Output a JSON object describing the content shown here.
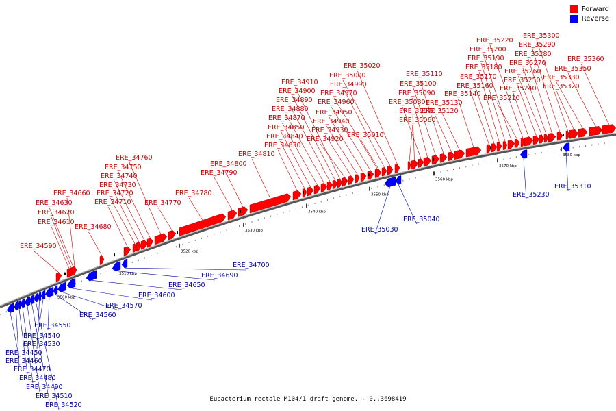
{
  "legend": {
    "forward_label": "Forward",
    "reverse_label": "Reverse",
    "forward_color": "#ff0000",
    "reverse_color": "#0000ff"
  },
  "caption": "Eubacterium rectale M104/1 draft genome. - 0..3698419",
  "tick_labels": [
    "3500 kbp",
    "3510 kbp",
    "3520 kbp",
    "3530 kbp",
    "3540 kbp",
    "3550 kbp",
    "3560 kbp",
    "3570 kbp",
    "3580 kbp"
  ],
  "forward_genes": [
    "ERE_34590",
    "ERE_34610",
    "ERE_34620",
    "ERE_34630",
    "ERE_34660",
    "ERE_34680",
    "ERE_34710",
    "ERE_34720",
    "ERE_34730",
    "ERE_34740",
    "ERE_34750",
    "ERE_34760",
    "ERE_34770",
    "ERE_34780",
    "ERE_34790",
    "ERE_34800",
    "ERE_34810",
    "ERE_34830",
    "ERE_34840",
    "ERE_34850",
    "ERE_34870",
    "ERE_34880",
    "ERE_34890",
    "ERE_34900",
    "ERE_34910",
    "ERE_34920",
    "ERE_34930",
    "ERE_34940",
    "ERE_34950",
    "ERE_34960",
    "ERE_34970",
    "ERE_34990",
    "ERE_35000",
    "ERE_35010",
    "ERE_35020",
    "ERE_35060",
    "ERE_35070",
    "ERE_35080",
    "ERE_35090",
    "ERE_35100",
    "ERE_35110",
    "ERE_35120",
    "ERE_35130",
    "ERE_35140",
    "ERE_35160",
    "ERE_35170",
    "ERE_35180",
    "ERE_35190",
    "ERE_35200",
    "ERE_35210",
    "ERE_35220",
    "ERE_35240",
    "ERE_35250",
    "ERE_35260",
    "ERE_35270",
    "ERE_35280",
    "ERE_35290",
    "ERE_35300",
    "ERE_35320",
    "ERE_35330",
    "ERE_35350",
    "ERE_35360"
  ],
  "reverse_genes": [
    "ERE_34450",
    "ERE_34460",
    "ERE_34470",
    "ERE_34480",
    "ERE_34490",
    "ERE_34510",
    "ERE_34520",
    "ERE_34530",
    "ERE_34540",
    "ERE_34550",
    "ERE_34560",
    "ERE_34570",
    "ERE_34600",
    "ERE_34650",
    "ERE_34690",
    "ERE_34700",
    "ERE_35030",
    "ERE_35040",
    "ERE_35230",
    "ERE_35310"
  ]
}
